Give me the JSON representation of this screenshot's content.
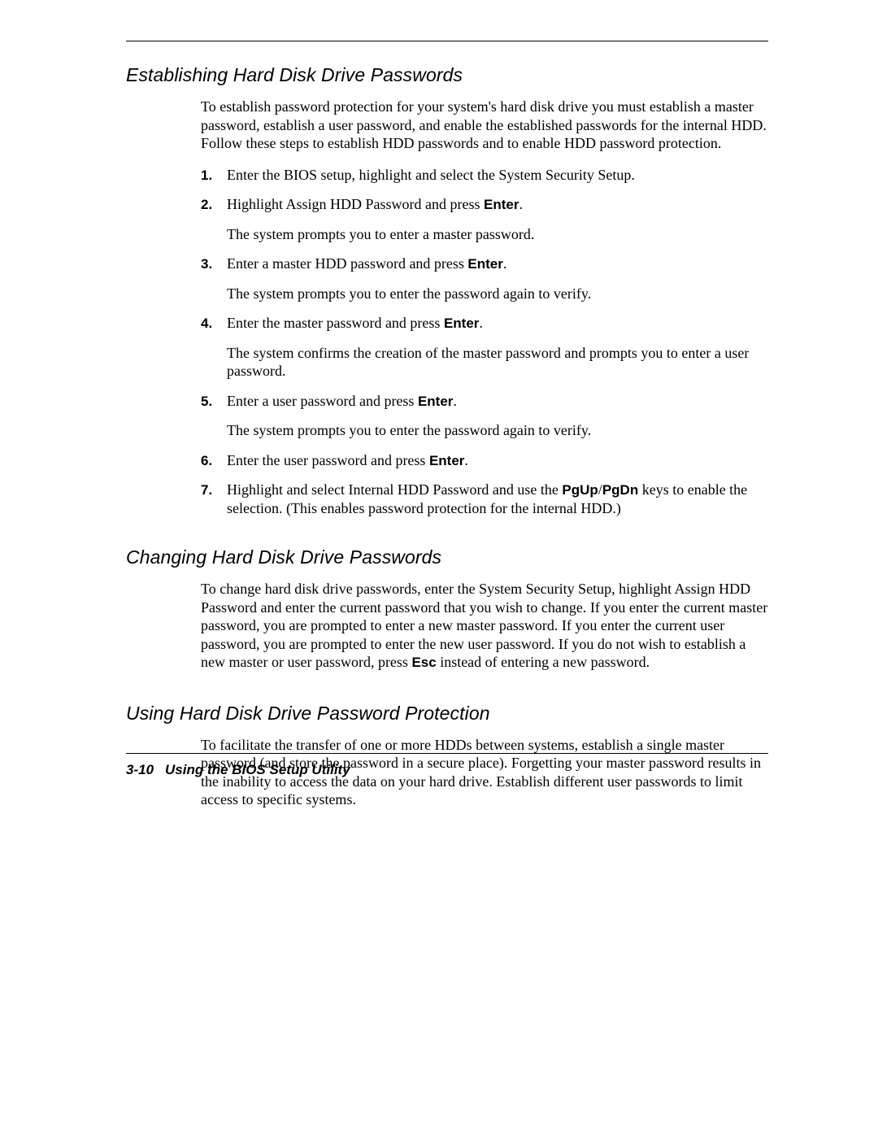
{
  "colors": {
    "background": "#ffffff",
    "text": "#000000",
    "rule": "#000000"
  },
  "fonts": {
    "heading_family": "Arial",
    "heading_style": "italic",
    "heading_size_pt": 17,
    "body_family": "Times New Roman",
    "body_size_pt": 13.5,
    "bold_inline_family": "Arial"
  },
  "section1": {
    "heading": "Establishing Hard Disk Drive Passwords",
    "intro": "To establish password protection for your system's hard disk drive you must establish a master password, establish a user password, and enable the established passwords for the internal HDD. Follow these steps to establish HDD passwords and to enable HDD password protection.",
    "steps": [
      {
        "num": "1.",
        "text_a": "Enter the BIOS setup, highlight and select the System Security Setup."
      },
      {
        "num": "2.",
        "text_a": "Highlight Assign HDD Password and press ",
        "bold_a": "Enter",
        "text_b": ".",
        "sub": "The system prompts you to enter a master password."
      },
      {
        "num": "3.",
        "text_a": "Enter a master HDD password and press ",
        "bold_a": "Enter",
        "text_b": ".",
        "sub": "The system prompts you to enter the password again to verify."
      },
      {
        "num": "4.",
        "text_a": "Enter the master password and press ",
        "bold_a": "Enter",
        "text_b": ".",
        "sub": "The system confirms the creation of the master password and prompts you to enter a user password."
      },
      {
        "num": "5.",
        "text_a": "Enter a user password and press ",
        "bold_a": "Enter",
        "text_b": ".",
        "sub": "The system prompts you to enter the password again to verify."
      },
      {
        "num": "6.",
        "text_a": "Enter the user password and press ",
        "bold_a": "Enter",
        "text_b": "."
      },
      {
        "num": "7.",
        "text_a": "Highlight and select Internal HDD Password and use the ",
        "bold_a": "PgUp",
        "text_b": "/",
        "bold_b": "PgDn",
        "text_c": " keys to enable the selection. (This enables password protection for the internal HDD.)"
      }
    ]
  },
  "section2": {
    "heading": "Changing Hard Disk Drive Passwords",
    "para_a": "To change hard disk drive passwords, enter the System Security Setup, highlight Assign HDD Password and enter the current password that you wish to change. If you enter the current master password, you are prompted to enter a new master password. If you enter the current user password, you are prompted to enter the new user password. If you do not wish to establish a new master or user password, press ",
    "bold_a": "Esc",
    "para_b": " instead of entering a new password."
  },
  "section3": {
    "heading": "Using Hard Disk Drive Password Protection",
    "para": "To facilitate the transfer of one or more HDDs between systems, establish a single master password (and store the password in a secure place). Forgetting your master password results in the inability to access the data on your hard drive. Establish different user passwords to limit access to specific systems."
  },
  "footer": {
    "page": "3-10",
    "title": "Using the BIOS Setup Utility"
  }
}
